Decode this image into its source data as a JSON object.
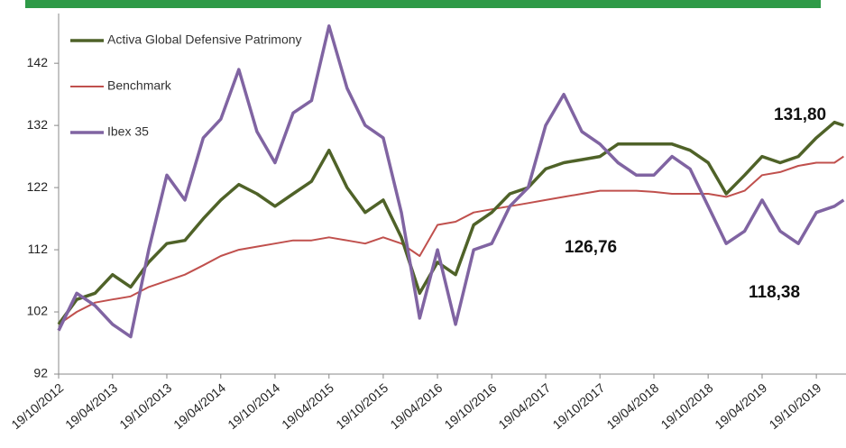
{
  "chart_data": {
    "type": "line",
    "x": [
      "19/10/2012",
      "19/12/2012",
      "19/02/2013",
      "19/04/2013",
      "19/06/2013",
      "19/08/2013",
      "19/10/2013",
      "19/12/2013",
      "19/02/2014",
      "19/04/2014",
      "19/06/2014",
      "19/08/2014",
      "19/10/2014",
      "19/12/2014",
      "19/02/2015",
      "19/04/2015",
      "19/06/2015",
      "19/08/2015",
      "19/10/2015",
      "19/12/2015",
      "19/02/2016",
      "19/04/2016",
      "19/06/2016",
      "19/08/2016",
      "19/10/2016",
      "19/12/2016",
      "19/02/2017",
      "19/04/2017",
      "19/06/2017",
      "19/08/2017",
      "19/10/2017",
      "19/12/2017",
      "19/02/2018",
      "19/04/2018",
      "19/06/2018",
      "19/08/2018",
      "19/10/2018",
      "19/12/2018",
      "19/02/2019",
      "19/04/2019",
      "19/06/2019",
      "19/08/2019",
      "19/10/2019",
      "19/12/2019",
      "19/01/2020"
    ],
    "series": [
      {
        "name": "Activa Global Defensive Patrimony",
        "color": "#4f6228",
        "values": [
          100,
          104,
          105,
          108,
          106,
          110,
          113,
          113.5,
          117,
          120,
          122.5,
          121,
          119,
          121,
          123,
          128,
          122,
          118,
          120,
          114,
          105,
          110,
          108,
          116,
          118,
          121,
          122,
          125,
          126,
          126.5,
          127,
          129,
          129,
          129,
          129,
          128,
          126,
          121,
          124,
          127,
          126,
          127,
          130,
          132.5,
          132
        ]
      },
      {
        "name": "Benchmark",
        "color": "#c0504d",
        "values": [
          100,
          102,
          103.5,
          104,
          104.5,
          106,
          107,
          108,
          109.5,
          111,
          112,
          112.5,
          113,
          113.5,
          113.5,
          114,
          113.5,
          113,
          114,
          113,
          111,
          116,
          116.5,
          118,
          118.5,
          119,
          119.5,
          120,
          120.5,
          121,
          121.5,
          121.5,
          121.5,
          121.3,
          121,
          121,
          121,
          120.5,
          121.5,
          124,
          124.5,
          125.5,
          126,
          126,
          127
        ]
      },
      {
        "name": "Ibex 35",
        "color": "#8064a2",
        "values": [
          99,
          105,
          103,
          100,
          98,
          112,
          124,
          120,
          130,
          133,
          141,
          131,
          126,
          134,
          136,
          148,
          138,
          132,
          130,
          118,
          101,
          112,
          100,
          112,
          113,
          119,
          122,
          132,
          137,
          131,
          129,
          126,
          124,
          124,
          127,
          125,
          119,
          113,
          115,
          120,
          115,
          113,
          118,
          119,
          120
        ]
      }
    ],
    "xlim": [
      "19/10/2012",
      "27/01/2020"
    ],
    "xticks": [
      "19/10/2012",
      "19/04/2013",
      "19/10/2013",
      "19/04/2014",
      "19/10/2014",
      "19/04/2015",
      "19/10/2015",
      "19/04/2016",
      "19/10/2016",
      "19/04/2017",
      "19/10/2017",
      "19/04/2018",
      "19/10/2018",
      "19/04/2019",
      "19/10/2019"
    ],
    "ylim": [
      92,
      150
    ],
    "yticks": [
      92,
      102,
      112,
      122,
      132,
      142
    ],
    "annotations": [
      "131,80",
      "126,76",
      "118,38"
    ]
  }
}
